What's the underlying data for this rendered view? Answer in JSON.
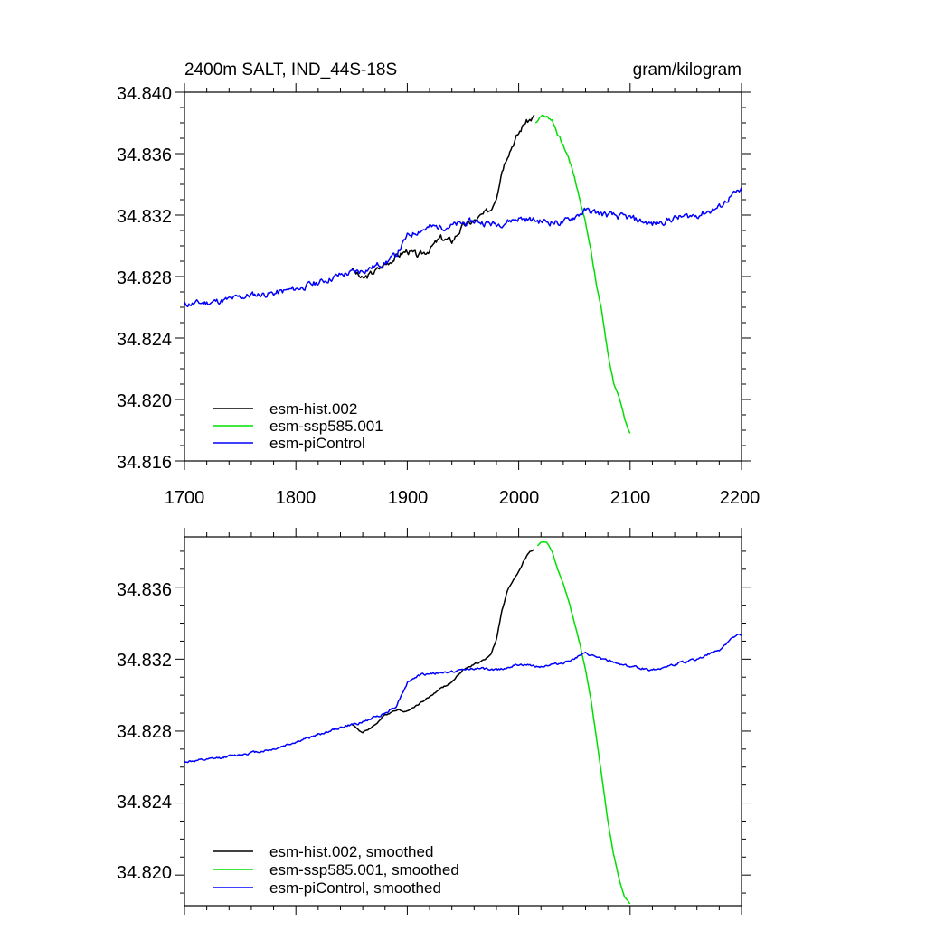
{
  "colors": {
    "hist": "#000000",
    "ssp": "#00e000",
    "pic": "#0000ff",
    "frame": "#000000"
  },
  "chart_data": [
    {
      "type": "line",
      "title_left": "2400m SALT, IND_44S-18S",
      "title_right": "gram/kilogram",
      "xlim": [
        1700,
        2200
      ],
      "ylim": [
        34.816,
        34.84
      ],
      "xticks": [
        1700,
        1800,
        1900,
        2000,
        2100,
        2200
      ],
      "xtick_labels": [
        "1700",
        "1800",
        "1900",
        "2000",
        "2100",
        "2200"
      ],
      "yticks": [
        34.816,
        34.82,
        34.824,
        34.828,
        34.832,
        34.836,
        34.84
      ],
      "ytick_labels": [
        "34.816",
        "34.820",
        "34.824",
        "34.828",
        "34.832",
        "34.836",
        "34.840"
      ],
      "series": [
        {
          "name": "esm-hist.002",
          "color": "#000000",
          "noise": 0.00022,
          "seed": 3,
          "x": [
            1850,
            1860,
            1870,
            1880,
            1890,
            1900,
            1910,
            1920,
            1930,
            1940,
            1950,
            1960,
            1970,
            1975,
            1980,
            1985,
            1990,
            1995,
            2000,
            2005,
            2010,
            2014
          ],
          "y": [
            34.8285,
            34.8278,
            34.8283,
            34.8288,
            34.8293,
            34.8297,
            34.8293,
            34.8298,
            34.8305,
            34.8303,
            34.8313,
            34.8316,
            34.8321,
            34.8324,
            34.8333,
            34.835,
            34.836,
            34.8367,
            34.8373,
            34.838,
            34.8382,
            34.8384
          ]
        },
        {
          "name": "esm-ssp585.001",
          "color": "#00e000",
          "noise": 0.00012,
          "seed": 7,
          "x": [
            2015,
            2020,
            2025,
            2030,
            2035,
            2040,
            2045,
            2050,
            2055,
            2060,
            2065,
            2070,
            2075,
            2080,
            2085,
            2090,
            2095,
            2100
          ],
          "y": [
            34.838,
            34.8385,
            34.8384,
            34.8382,
            34.8373,
            34.8365,
            34.8357,
            34.8345,
            34.833,
            34.8315,
            34.8296,
            34.8275,
            34.8255,
            34.823,
            34.8212,
            34.82,
            34.8188,
            34.8178
          ]
        },
        {
          "name": "esm-piControl",
          "color": "#0000ff",
          "noise": 0.00022,
          "seed": 11,
          "x": [
            1700,
            1720,
            1740,
            1760,
            1780,
            1800,
            1820,
            1840,
            1860,
            1880,
            1890,
            1900,
            1910,
            1920,
            1940,
            1960,
            1980,
            2000,
            2020,
            2040,
            2060,
            2080,
            2100,
            2120,
            2140,
            2160,
            2180,
            2190,
            2200
          ],
          "y": [
            34.8262,
            34.8263,
            34.8265,
            34.8268,
            34.8269,
            34.8272,
            34.8276,
            34.8281,
            34.8284,
            34.8289,
            34.8294,
            34.8306,
            34.831,
            34.8312,
            34.8313,
            34.8316,
            34.8314,
            34.8318,
            34.8316,
            34.8315,
            34.8323,
            34.832,
            34.8318,
            34.8314,
            34.8318,
            34.832,
            34.8325,
            34.8332,
            34.8336
          ]
        }
      ],
      "legend": {
        "placement": "lower-left",
        "labels": [
          "esm-hist.002",
          "esm-ssp585.001",
          "esm-piControl"
        ]
      }
    },
    {
      "type": "line",
      "xlim": [
        1700,
        2200
      ],
      "ylim": [
        34.8183,
        34.8388
      ],
      "xticks": [
        1700,
        1800,
        1900,
        2000,
        2100,
        2200
      ],
      "yticks": [
        34.82,
        34.824,
        34.828,
        34.832,
        34.836
      ],
      "ytick_labels": [
        "34.820",
        "34.824",
        "34.828",
        "34.832",
        "34.836"
      ],
      "series": [
        {
          "name": "esm-hist.002, smoothed",
          "color": "#000000",
          "noise": 5e-05,
          "seed": 4,
          "x": [
            1850,
            1860,
            1870,
            1880,
            1890,
            1900,
            1910,
            1920,
            1930,
            1940,
            1950,
            1960,
            1970,
            1975,
            1980,
            1985,
            1990,
            1995,
            2000,
            2005,
            2010,
            2014
          ],
          "y": [
            34.8284,
            34.8279,
            34.8283,
            34.8289,
            34.8292,
            34.8291,
            34.8295,
            34.8299,
            34.8304,
            34.8307,
            34.8314,
            34.8317,
            34.832,
            34.8323,
            34.8331,
            34.8347,
            34.8358,
            34.8364,
            34.8369,
            34.8375,
            34.838,
            34.8381
          ]
        },
        {
          "name": "esm-ssp585.001, smoothed",
          "color": "#00e000",
          "noise": 3e-05,
          "seed": 8,
          "x": [
            2017,
            2020,
            2025,
            2030,
            2035,
            2040,
            2045,
            2050,
            2055,
            2060,
            2065,
            2070,
            2075,
            2080,
            2085,
            2090,
            2095,
            2100
          ],
          "y": [
            34.8383,
            34.8385,
            34.8385,
            34.838,
            34.837,
            34.8362,
            34.8352,
            34.834,
            34.8328,
            34.8314,
            34.8297,
            34.8275,
            34.8253,
            34.823,
            34.8212,
            34.8198,
            34.8188,
            34.8184
          ]
        },
        {
          "name": "esm-piControl, smoothed",
          "color": "#0000ff",
          "noise": 7e-05,
          "seed": 12,
          "x": [
            1700,
            1720,
            1740,
            1760,
            1780,
            1800,
            1820,
            1840,
            1860,
            1880,
            1890,
            1900,
            1910,
            1920,
            1940,
            1960,
            1980,
            2000,
            2020,
            2040,
            2060,
            2080,
            2100,
            2120,
            2140,
            2160,
            2180,
            2190,
            2200
          ],
          "y": [
            34.8263,
            34.8264,
            34.8266,
            34.8268,
            34.827,
            34.8274,
            34.8278,
            34.8282,
            34.8285,
            34.829,
            34.8294,
            34.8307,
            34.8311,
            34.8312,
            34.8313,
            34.8315,
            34.8314,
            34.8317,
            34.8316,
            34.8318,
            34.8323,
            34.8319,
            34.8316,
            34.8314,
            34.8317,
            34.832,
            34.8325,
            34.8331,
            34.8334
          ]
        }
      ],
      "legend": {
        "placement": "lower-left",
        "labels": [
          "esm-hist.002, smoothed",
          "esm-ssp585.001, smoothed",
          "esm-piControl, smoothed"
        ]
      }
    }
  ]
}
